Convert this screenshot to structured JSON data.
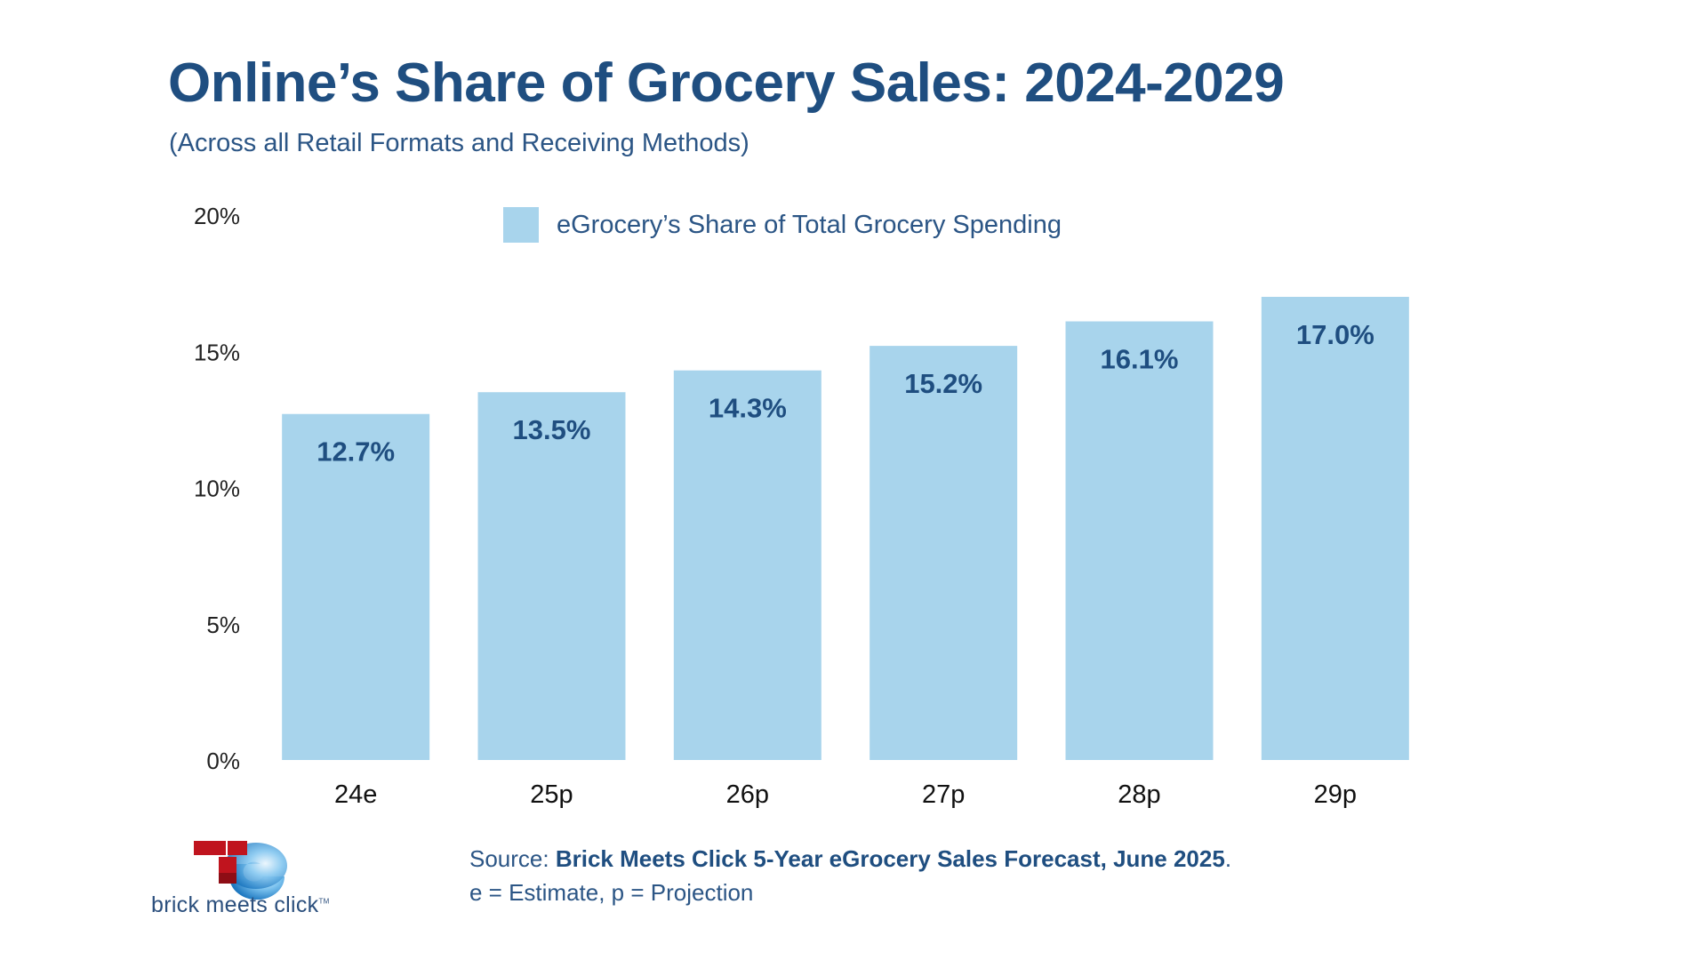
{
  "title": "Online’s Share of Grocery Sales: 2024-2029",
  "subtitle": "(Across all Retail Formats and Receiving Methods)",
  "colors": {
    "bar": "#a8d4ec",
    "title": "#1f4e80",
    "data_label": "#1f4e80",
    "axis_text": "#222222",
    "logo_red": "#b5121b",
    "logo_blue": "#3a9ad9"
  },
  "chart_data": {
    "type": "bar",
    "title": "",
    "xlabel": "",
    "ylabel": "",
    "categories": [
      "24e",
      "25p",
      "26p",
      "27p",
      "28p",
      "29p"
    ],
    "series": [
      {
        "name": "eGrocery’s Share of Total Grocery Spending",
        "values": [
          12.7,
          13.5,
          14.3,
          15.2,
          16.1,
          17.0
        ]
      }
    ],
    "data_labels": [
      "12.7%",
      "13.5%",
      "14.3%",
      "15.2%",
      "16.1%",
      "17.0%"
    ],
    "ylim": [
      0,
      20
    ],
    "yticks": [
      0,
      5,
      10,
      15,
      20
    ],
    "ytick_labels": [
      "0%",
      "5%",
      "10%",
      "15%",
      "20%"
    ],
    "grid": false,
    "legend_position": "top-center"
  },
  "source": {
    "prefix": "Source: ",
    "name": "Brick Meets Click 5-Year eGrocery Sales Forecast, June 2025",
    "suffix": ".",
    "note": "e = Estimate, p = Projection"
  },
  "logo": {
    "text": "brick meets click",
    "tm": "TM",
    "icon": "brick-meets-click-logo-icon"
  }
}
